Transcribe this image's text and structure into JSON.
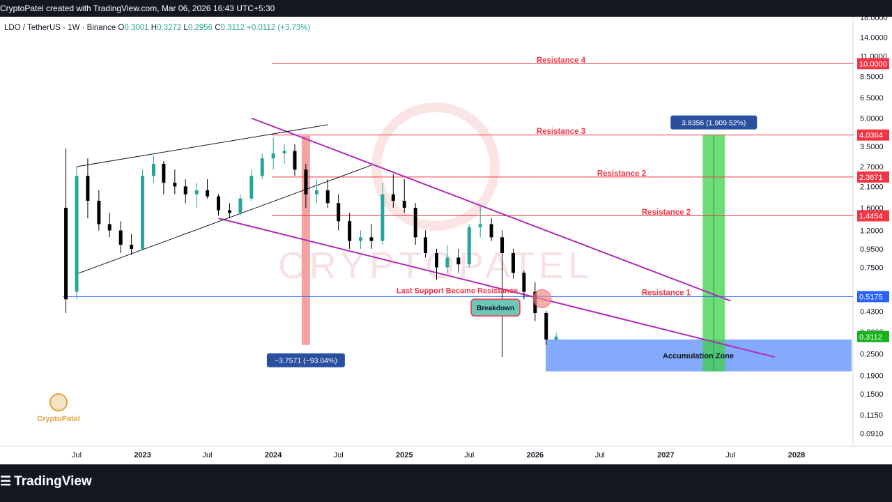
{
  "header": {
    "attribution": "CryptoPatel created with TradingView.com, Mar 06, 2026 16:43 UTC+5:30"
  },
  "legend": {
    "symbol": "LDO / TetherUS · 1W · Binance",
    "open_label": "O",
    "open": "0.3001",
    "high_label": "H",
    "high": "0.3272",
    "low_label": "L",
    "low": "0.2956",
    "close_label": "C",
    "close": "0.3112",
    "change": "+0.0112 (+3.73%)"
  },
  "footer": {
    "brand": "TradingView"
  },
  "watermark": {
    "text": "CRYPTOPATEL",
    "logo_text": "CryptoPatel"
  },
  "colors": {
    "up": "#26a69a",
    "down": "#000000",
    "resistance": "#f23645",
    "support": "#2962ff",
    "channel": "#b02ab6",
    "accumulation": "#5b8ff9",
    "target": "#3fd24a",
    "drop": "#f28b8b"
  },
  "chart_data": {
    "type": "candlestick",
    "symbol": "LDO / TetherUS",
    "timeframe": "1W",
    "exchange": "Binance",
    "y_scale": "log",
    "y_ticks": [
      "18.0000",
      "14.0000",
      "11.0000",
      "8.5000",
      "6.5000",
      "5.0000",
      "3.5000",
      "2.7000",
      "2.1000",
      "1.6000",
      "1.2000",
      "0.9500",
      "0.7500",
      "0.4300",
      "0.3300",
      "0.2500",
      "0.1900",
      "0.1500",
      "0.1150",
      "0.0910"
    ],
    "x_ticks": [
      {
        "label": "Jul",
        "date": "2022-07-01"
      },
      {
        "label": "2023",
        "date": "2023-01-01"
      },
      {
        "label": "Jul",
        "date": "2023-07-01"
      },
      {
        "label": "2024",
        "date": "2024-01-01"
      },
      {
        "label": "Jul",
        "date": "2024-07-01"
      },
      {
        "label": "2025",
        "date": "2025-01-01"
      },
      {
        "label": "Jul",
        "date": "2025-07-01"
      },
      {
        "label": "2026",
        "date": "2026-01-01"
      },
      {
        "label": "Jul",
        "date": "2026-07-01"
      },
      {
        "label": "2027",
        "date": "2027-01-01"
      },
      {
        "label": "Jul",
        "date": "2027-07-01"
      },
      {
        "label": "2028",
        "date": "2028-01-01"
      }
    ],
    "price_levels": [
      {
        "name": "Resistance 4",
        "value": 10.0,
        "label": "10.0000",
        "from": "2024-01-01"
      },
      {
        "name": "Resistance 3",
        "value": 4.0364,
        "label": "4.0364",
        "from": "2024-01-01"
      },
      {
        "name": "Resistance 2",
        "value": 2.3671,
        "label": "2.3671",
        "from": "2024-01-01"
      },
      {
        "name": "Resistance 2",
        "value": 1.4454,
        "label": "1.4454",
        "from": "2024-01-01"
      },
      {
        "name": "Resistance 1",
        "value": 0.5175,
        "label": "0.5175",
        "from": "2022-06-01"
      }
    ],
    "last_price": {
      "value": 0.3112,
      "label": "0.3112"
    },
    "accumulation_zone": {
      "label": "Accumulation Zone",
      "top": 0.3,
      "bottom": 0.2,
      "from": "2026-01-01"
    },
    "drop_measure": {
      "label": "−3.7571 (−93.04%)",
      "from_price": 4.0,
      "to_price": 0.28,
      "date": "2024-04-01"
    },
    "target_measure": {
      "label": "3.8356 (1,909.52%)",
      "from_price": 0.2,
      "to_price": 4.0364,
      "date": "2027-05-15"
    },
    "annotations": [
      "Last Support Became Resistance",
      "Breakdown",
      "Resistance 4",
      "Resistance 3",
      "Resistance 2",
      "Resistance 2",
      "Resistance 1",
      "Accumulation Zone"
    ],
    "channel_upper": [
      {
        "date": "2023-11-01",
        "value": 5.0
      },
      {
        "date": "2027-07-01",
        "value": 0.49
      }
    ],
    "channel_lower": [
      {
        "date": "2023-08-01",
        "value": 1.4
      },
      {
        "date": "2027-11-01",
        "value": 0.24
      }
    ],
    "wedge_upper": [
      {
        "date": "2022-07-01",
        "value": 2.7
      },
      {
        "date": "2024-06-01",
        "value": 4.6
      }
    ],
    "wedge_lower": [
      {
        "date": "2022-07-01",
        "value": 0.69
      },
      {
        "date": "2024-10-01",
        "value": 2.75
      }
    ],
    "candles": [
      {
        "date": "2022-06-01",
        "o": 1.6,
        "h": 3.4,
        "l": 0.42,
        "c": 0.5
      },
      {
        "date": "2022-07-01",
        "o": 0.55,
        "h": 2.7,
        "l": 0.5,
        "c": 2.4
      },
      {
        "date": "2022-08-01",
        "o": 2.4,
        "h": 3.0,
        "l": 1.4,
        "c": 1.75
      },
      {
        "date": "2022-09-01",
        "o": 1.75,
        "h": 2.0,
        "l": 1.2,
        "c": 1.3
      },
      {
        "date": "2022-10-01",
        "o": 1.3,
        "h": 1.5,
        "l": 1.1,
        "c": 1.2
      },
      {
        "date": "2022-11-01",
        "o": 1.2,
        "h": 1.35,
        "l": 0.9,
        "c": 1.0
      },
      {
        "date": "2022-12-01",
        "o": 1.0,
        "h": 1.15,
        "l": 0.88,
        "c": 0.95
      },
      {
        "date": "2023-01-01",
        "o": 0.95,
        "h": 2.6,
        "l": 0.93,
        "c": 2.4
      },
      {
        "date": "2023-02-01",
        "o": 2.4,
        "h": 3.1,
        "l": 2.2,
        "c": 2.8
      },
      {
        "date": "2023-03-01",
        "o": 2.8,
        "h": 2.9,
        "l": 1.9,
        "c": 2.2
      },
      {
        "date": "2023-04-01",
        "o": 2.2,
        "h": 2.6,
        "l": 1.9,
        "c": 2.1
      },
      {
        "date": "2023-05-01",
        "o": 2.1,
        "h": 2.3,
        "l": 1.7,
        "c": 1.9
      },
      {
        "date": "2023-06-01",
        "o": 1.9,
        "h": 2.2,
        "l": 1.6,
        "c": 2.0
      },
      {
        "date": "2023-07-01",
        "o": 2.0,
        "h": 2.3,
        "l": 1.8,
        "c": 1.85
      },
      {
        "date": "2023-08-01",
        "o": 1.85,
        "h": 1.9,
        "l": 1.45,
        "c": 1.55
      },
      {
        "date": "2023-09-01",
        "o": 1.55,
        "h": 1.7,
        "l": 1.4,
        "c": 1.5
      },
      {
        "date": "2023-10-01",
        "o": 1.5,
        "h": 1.9,
        "l": 1.45,
        "c": 1.8
      },
      {
        "date": "2023-11-01",
        "o": 1.8,
        "h": 2.6,
        "l": 1.75,
        "c": 2.4
      },
      {
        "date": "2023-12-01",
        "o": 2.4,
        "h": 3.2,
        "l": 2.3,
        "c": 3.0
      },
      {
        "date": "2024-01-01",
        "o": 3.0,
        "h": 3.9,
        "l": 2.6,
        "c": 3.2
      },
      {
        "date": "2024-02-01",
        "o": 3.2,
        "h": 3.6,
        "l": 2.8,
        "c": 3.3
      },
      {
        "date": "2024-03-01",
        "o": 3.3,
        "h": 3.6,
        "l": 2.4,
        "c": 2.6
      },
      {
        "date": "2024-04-01",
        "o": 2.6,
        "h": 2.8,
        "l": 1.6,
        "c": 1.9
      },
      {
        "date": "2024-05-01",
        "o": 1.9,
        "h": 2.3,
        "l": 1.7,
        "c": 2.0
      },
      {
        "date": "2024-06-01",
        "o": 2.0,
        "h": 2.3,
        "l": 1.6,
        "c": 1.7
      },
      {
        "date": "2024-07-01",
        "o": 1.7,
        "h": 1.9,
        "l": 1.2,
        "c": 1.35
      },
      {
        "date": "2024-08-01",
        "o": 1.35,
        "h": 1.5,
        "l": 0.95,
        "c": 1.05
      },
      {
        "date": "2024-09-01",
        "o": 1.05,
        "h": 1.2,
        "l": 0.95,
        "c": 1.1
      },
      {
        "date": "2024-10-01",
        "o": 1.1,
        "h": 1.3,
        "l": 0.95,
        "c": 1.05
      },
      {
        "date": "2024-11-01",
        "o": 1.05,
        "h": 2.2,
        "l": 1.0,
        "c": 1.9
      },
      {
        "date": "2024-12-01",
        "o": 1.9,
        "h": 2.45,
        "l": 1.6,
        "c": 1.75
      },
      {
        "date": "2025-01-01",
        "o": 1.75,
        "h": 2.3,
        "l": 1.5,
        "c": 1.6
      },
      {
        "date": "2025-02-01",
        "o": 1.6,
        "h": 1.7,
        "l": 1.0,
        "c": 1.1
      },
      {
        "date": "2025-03-01",
        "o": 1.1,
        "h": 1.2,
        "l": 0.85,
        "c": 0.9
      },
      {
        "date": "2025-04-01",
        "o": 0.9,
        "h": 0.95,
        "l": 0.64,
        "c": 0.75
      },
      {
        "date": "2025-05-01",
        "o": 0.75,
        "h": 1.0,
        "l": 0.7,
        "c": 0.85
      },
      {
        "date": "2025-06-01",
        "o": 0.85,
        "h": 0.95,
        "l": 0.7,
        "c": 0.78
      },
      {
        "date": "2025-07-01",
        "o": 0.78,
        "h": 1.3,
        "l": 0.75,
        "c": 1.25
      },
      {
        "date": "2025-08-01",
        "o": 1.25,
        "h": 1.65,
        "l": 1.1,
        "c": 1.3
      },
      {
        "date": "2025-09-01",
        "o": 1.3,
        "h": 1.4,
        "l": 1.05,
        "c": 1.1
      },
      {
        "date": "2025-10-01",
        "o": 1.1,
        "h": 1.2,
        "l": 0.24,
        "c": 0.9
      },
      {
        "date": "2025-11-01",
        "o": 0.9,
        "h": 0.95,
        "l": 0.65,
        "c": 0.7
      },
      {
        "date": "2025-12-01",
        "o": 0.7,
        "h": 0.72,
        "l": 0.5,
        "c": 0.55
      },
      {
        "date": "2026-01-01",
        "o": 0.55,
        "h": 0.62,
        "l": 0.38,
        "c": 0.42
      },
      {
        "date": "2026-02-01",
        "o": 0.42,
        "h": 0.43,
        "l": 0.28,
        "c": 0.3
      },
      {
        "date": "2026-03-01",
        "o": 0.3001,
        "h": 0.3272,
        "l": 0.2956,
        "c": 0.3112
      }
    ]
  }
}
